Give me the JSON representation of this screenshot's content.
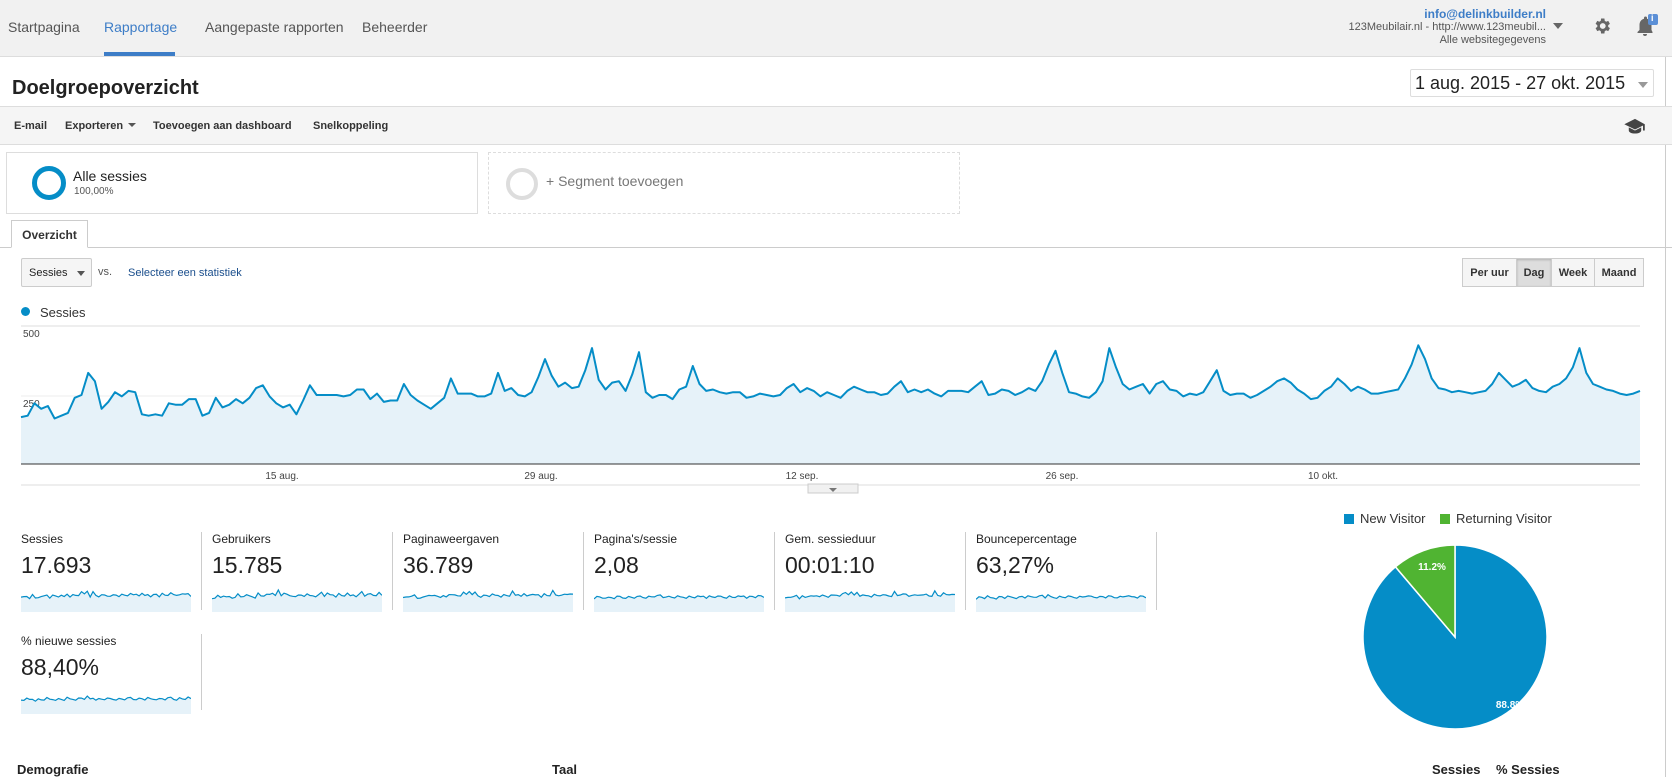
{
  "topnav": {
    "tabs": [
      {
        "label": "Startpagina",
        "active": false
      },
      {
        "label": "Rapportage",
        "active": true
      },
      {
        "label": "Aangepaste rapporten",
        "active": false
      },
      {
        "label": "Beheerder",
        "active": false
      }
    ],
    "account": {
      "email": "info@delinkbuilder.nl",
      "property": "123Meubilair.nl - http://www.123meubil...",
      "view": "Alle websitegegevens"
    },
    "notification_badge": "i",
    "accent_color": "#3d7dc7"
  },
  "page": {
    "title": "Doelgroepoverzicht",
    "date_range": "1 aug. 2015 - 27 okt. 2015"
  },
  "toolbar": {
    "email": "E-mail",
    "export": "Exporteren",
    "add_dashboard": "Toevoegen aan dashboard",
    "shortcut": "Snelkoppeling"
  },
  "segments": {
    "active": {
      "name": "Alle sessies",
      "percent": "100,00%"
    },
    "add": "+ Segment toevoegen"
  },
  "tab": {
    "overview": "Overzicht"
  },
  "chart_controls": {
    "metric": "Sessies",
    "vs": "vs.",
    "select_metric": "Selecteer een statistiek",
    "periods": [
      {
        "label": "Per uur",
        "active": false
      },
      {
        "label": "Dag",
        "active": true
      },
      {
        "label": "Week",
        "active": false
      },
      {
        "label": "Maand",
        "active": false
      }
    ]
  },
  "chart_data": {
    "type": "area",
    "series": [
      {
        "name": "Sessies",
        "color": "#058dc7",
        "values": [
          170,
          175,
          220,
          200,
          210,
          165,
          175,
          185,
          240,
          250,
          330,
          300,
          200,
          225,
          260,
          245,
          265,
          260,
          180,
          175,
          180,
          175,
          220,
          215,
          215,
          235,
          235,
          175,
          185,
          240,
          205,
          215,
          235,
          220,
          240,
          275,
          285,
          245,
          220,
          205,
          215,
          180,
          230,
          285,
          250,
          250,
          250,
          250,
          245,
          250,
          270,
          270,
          235,
          255,
          225,
          230,
          230,
          290,
          250,
          230,
          215,
          200,
          220,
          240,
          310,
          255,
          255,
          255,
          245,
          245,
          255,
          330,
          265,
          275,
          250,
          245,
          260,
          315,
          380,
          320,
          280,
          295,
          275,
          280,
          340,
          420,
          305,
          270,
          295,
          300,
          265,
          325,
          405,
          260,
          240,
          250,
          250,
          235,
          270,
          280,
          355,
          290,
          265,
          270,
          260,
          255,
          260,
          260,
          240,
          245,
          255,
          250,
          245,
          250,
          275,
          290,
          260,
          275,
          265,
          245,
          260,
          250,
          240,
          265,
          280,
          270,
          260,
          260,
          250,
          255,
          280,
          300,
          260,
          270,
          260,
          270,
          255,
          245,
          265,
          265,
          265,
          260,
          280,
          300,
          250,
          255,
          270,
          265,
          250,
          260,
          275,
          265,
          300,
          360,
          410,
          330,
          260,
          255,
          245,
          240,
          260,
          300,
          420,
          350,
          290,
          270,
          280,
          290,
          255,
          290,
          300,
          270,
          265,
          245,
          255,
          250,
          260,
          300,
          340,
          265,
          250,
          255,
          255,
          240,
          250,
          265,
          280,
          300,
          310,
          295,
          270,
          255,
          235,
          240,
          265,
          280,
          310,
          290,
          265,
          280,
          270,
          255,
          255,
          260,
          265,
          270,
          310,
          360,
          430,
          380,
          310,
          275,
          270,
          260,
          265,
          260,
          255,
          260,
          265,
          290,
          330,
          305,
          280,
          290,
          305,
          275,
          265,
          260,
          280,
          290,
          310,
          350,
          420,
          330,
          290,
          280,
          270,
          265,
          255,
          250,
          255,
          265
        ]
      }
    ],
    "x_labels": [
      "15 aug.",
      "29 aug.",
      "12 sep.",
      "26 sep.",
      "10 okt."
    ],
    "y_ticks": [
      500,
      250
    ],
    "ylim": [
      0,
      500
    ],
    "grid": true
  },
  "scorecards": [
    {
      "label": "Sessies",
      "value": "17.693"
    },
    {
      "label": "Gebruikers",
      "value": "15.785"
    },
    {
      "label": "Paginaweergaven",
      "value": "36.789"
    },
    {
      "label": "Pagina's/sessie",
      "value": "2,08"
    },
    {
      "label": "Gem. sessieduur",
      "value": "00:01:10"
    },
    {
      "label": "Bouncepercentage",
      "value": "63,27%"
    },
    {
      "label": "% nieuwe sessies",
      "value": "88,40%"
    }
  ],
  "pie": {
    "slices": [
      {
        "name": "New Visitor",
        "percent": 88.8,
        "label": "88.8%",
        "color": "#058dc7"
      },
      {
        "name": "Returning Visitor",
        "percent": 11.2,
        "label": "11.2%",
        "color": "#50b432"
      }
    ]
  },
  "bottom": {
    "demografie": "Demografie",
    "taal": "Taal",
    "sessies": "Sessies",
    "pct_sessies": "% Sessies"
  }
}
